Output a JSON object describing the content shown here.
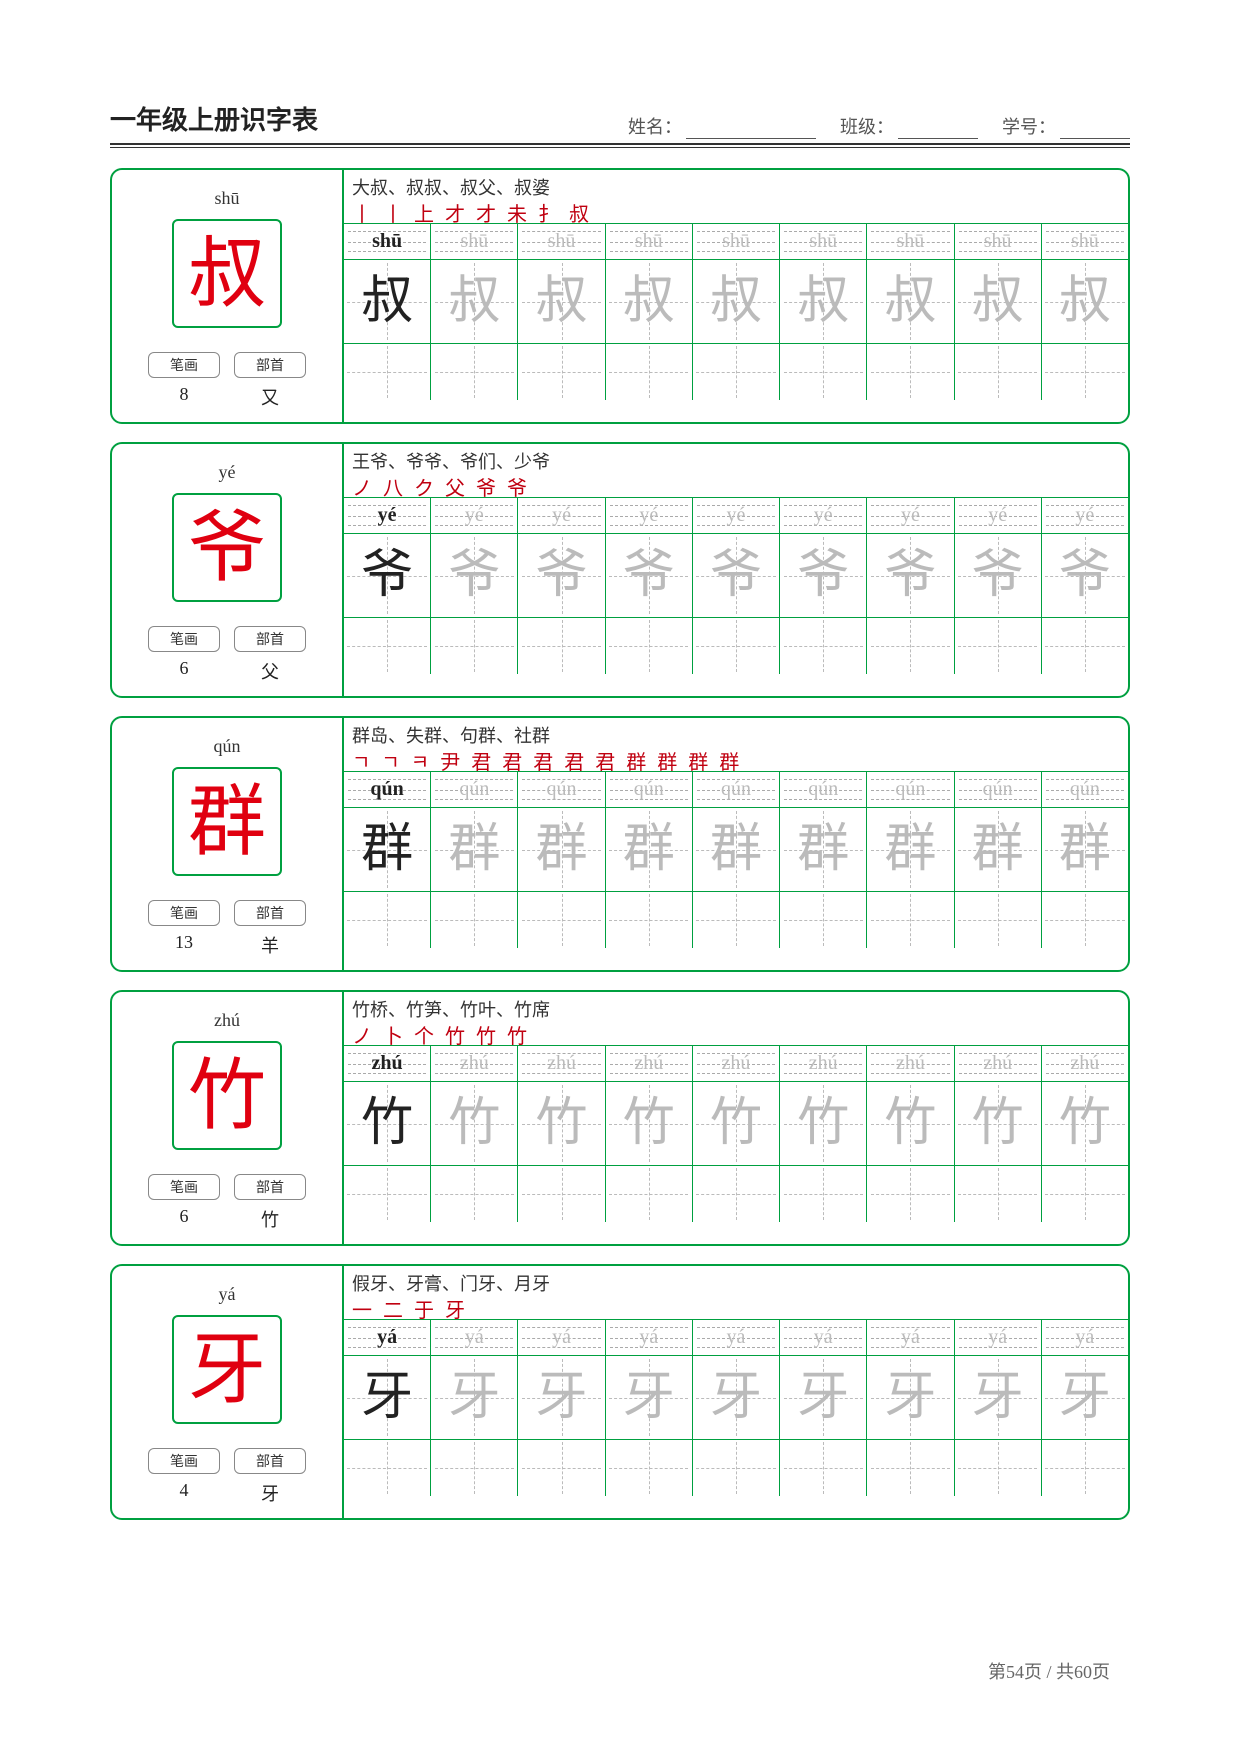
{
  "page": {
    "title": "一年级上册识字表",
    "name_label": "姓名：",
    "class_label": "班级：",
    "id_label": "学号：",
    "footer": "第54页 / 共60页"
  },
  "labels": {
    "strokes": "笔画",
    "radical": "部首"
  },
  "grid": {
    "cols": 9
  },
  "entries": [
    {
      "pinyin": "shū",
      "char": "叔",
      "strokes_count": "8",
      "radical": "又",
      "words": "大叔、叔叔、叔父、叔婆",
      "stroke_seq": "丨 丨 上 才 才 未 扌 叔"
    },
    {
      "pinyin": "yé",
      "char": "爷",
      "strokes_count": "6",
      "radical": "父",
      "words": "王爷、爷爷、爷们、少爷",
      "stroke_seq": "ノ 八 ク 父 爷 爷"
    },
    {
      "pinyin": "qún",
      "char": "群",
      "strokes_count": "13",
      "radical": "羊",
      "words": "群岛、失群、句群、社群",
      "stroke_seq": "ㄱ ㄱ ㅋ 尹 君 君 君 君 君 群 群 群 群"
    },
    {
      "pinyin": "zhú",
      "char": "竹",
      "strokes_count": "6",
      "radical": "竹",
      "words": "竹桥、竹笋、竹叶、竹席",
      "stroke_seq": "ノ 卜 个 竹 竹 竹"
    },
    {
      "pinyin": "yá",
      "char": "牙",
      "strokes_count": "4",
      "radical": "牙",
      "words": "假牙、牙膏、门牙、月牙",
      "stroke_seq": "一 二 于 牙"
    }
  ]
}
